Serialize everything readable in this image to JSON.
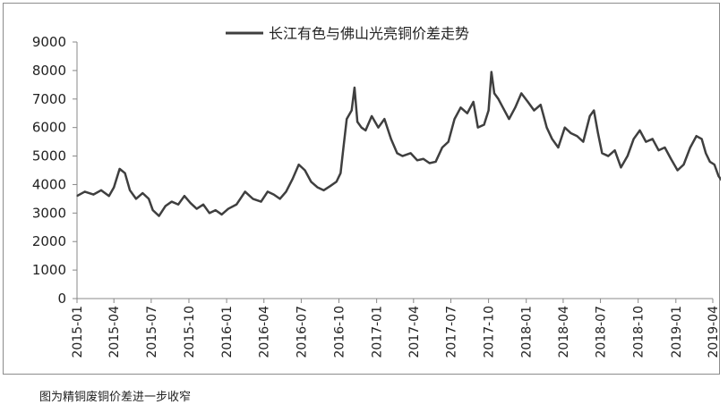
{
  "chart_data": {
    "type": "line",
    "title": "",
    "xlabel": "",
    "ylabel": "",
    "ylim": [
      0,
      9000
    ],
    "yticks": [
      0,
      1000,
      2000,
      3000,
      4000,
      5000,
      6000,
      7000,
      8000,
      9000
    ],
    "xticks": [
      "2015-01",
      "2015-04",
      "2015-07",
      "2015-10",
      "2016-01",
      "2016-04",
      "2016-07",
      "2016-10",
      "2017-01",
      "2017-04",
      "2017-07",
      "2017-10",
      "2018-01",
      "2018-04",
      "2018-07",
      "2018-10",
      "2019-01",
      "2019-04"
    ],
    "grid": false,
    "legend_position": "top-center",
    "line_color": "#3f3f3f",
    "series": [
      {
        "name": "长江有色与佛山光亮铜价差走势",
        "points": [
          [
            "2015-01-01",
            3600
          ],
          [
            "2015-01-20",
            3750
          ],
          [
            "2015-02-10",
            3650
          ],
          [
            "2015-03-01",
            3800
          ],
          [
            "2015-03-20",
            3600
          ],
          [
            "2015-04-01",
            3900
          ],
          [
            "2015-04-15",
            4550
          ],
          [
            "2015-04-28",
            4400
          ],
          [
            "2015-05-10",
            3800
          ],
          [
            "2015-05-25",
            3500
          ],
          [
            "2015-06-10",
            3700
          ],
          [
            "2015-06-25",
            3500
          ],
          [
            "2015-07-05",
            3100
          ],
          [
            "2015-07-20",
            2900
          ],
          [
            "2015-08-05",
            3250
          ],
          [
            "2015-08-20",
            3400
          ],
          [
            "2015-09-05",
            3300
          ],
          [
            "2015-09-20",
            3600
          ],
          [
            "2015-10-05",
            3350
          ],
          [
            "2015-10-20",
            3150
          ],
          [
            "2015-11-05",
            3300
          ],
          [
            "2015-11-20",
            3000
          ],
          [
            "2015-12-05",
            3100
          ],
          [
            "2015-12-20",
            2950
          ],
          [
            "2016-01-05",
            3150
          ],
          [
            "2016-01-25",
            3300
          ],
          [
            "2016-02-15",
            3750
          ],
          [
            "2016-03-05",
            3500
          ],
          [
            "2016-03-25",
            3400
          ],
          [
            "2016-04-10",
            3750
          ],
          [
            "2016-04-25",
            3650
          ],
          [
            "2016-05-10",
            3500
          ],
          [
            "2016-05-25",
            3750
          ],
          [
            "2016-06-10",
            4200
          ],
          [
            "2016-06-25",
            4700
          ],
          [
            "2016-07-10",
            4500
          ],
          [
            "2016-07-25",
            4100
          ],
          [
            "2016-08-10",
            3900
          ],
          [
            "2016-08-25",
            3800
          ],
          [
            "2016-09-10",
            3950
          ],
          [
            "2016-09-25",
            4100
          ],
          [
            "2016-10-05",
            4400
          ],
          [
            "2016-10-12",
            5300
          ],
          [
            "2016-10-20",
            6300
          ],
          [
            "2016-11-01",
            6600
          ],
          [
            "2016-11-08",
            7400
          ],
          [
            "2016-11-15",
            6200
          ],
          [
            "2016-11-25",
            6000
          ],
          [
            "2016-12-05",
            5900
          ],
          [
            "2016-12-20",
            6400
          ],
          [
            "2017-01-05",
            6000
          ],
          [
            "2017-01-20",
            6300
          ],
          [
            "2017-02-05",
            5600
          ],
          [
            "2017-02-20",
            5100
          ],
          [
            "2017-03-05",
            5000
          ],
          [
            "2017-03-25",
            5100
          ],
          [
            "2017-04-10",
            4850
          ],
          [
            "2017-04-25",
            4900
          ],
          [
            "2017-05-10",
            4750
          ],
          [
            "2017-05-25",
            4800
          ],
          [
            "2017-06-10",
            5300
          ],
          [
            "2017-06-25",
            5500
          ],
          [
            "2017-07-10",
            6300
          ],
          [
            "2017-07-25",
            6700
          ],
          [
            "2017-08-10",
            6500
          ],
          [
            "2017-08-25",
            6900
          ],
          [
            "2017-09-05",
            6000
          ],
          [
            "2017-09-20",
            6100
          ],
          [
            "2017-10-01",
            6600
          ],
          [
            "2017-10-08",
            7950
          ],
          [
            "2017-10-15",
            7200
          ],
          [
            "2017-10-25",
            7000
          ],
          [
            "2017-11-05",
            6700
          ],
          [
            "2017-11-20",
            6300
          ],
          [
            "2017-12-05",
            6700
          ],
          [
            "2017-12-20",
            7200
          ],
          [
            "2018-01-05",
            6900
          ],
          [
            "2018-01-20",
            6600
          ],
          [
            "2018-02-05",
            6800
          ],
          [
            "2018-02-20",
            6000
          ],
          [
            "2018-03-05",
            5600
          ],
          [
            "2018-03-20",
            5300
          ],
          [
            "2018-04-05",
            6000
          ],
          [
            "2018-04-20",
            5800
          ],
          [
            "2018-05-05",
            5700
          ],
          [
            "2018-05-20",
            5500
          ],
          [
            "2018-06-05",
            6400
          ],
          [
            "2018-06-15",
            6600
          ],
          [
            "2018-06-25",
            5800
          ],
          [
            "2018-07-05",
            5100
          ],
          [
            "2018-07-20",
            5000
          ],
          [
            "2018-08-05",
            5200
          ],
          [
            "2018-08-20",
            4600
          ],
          [
            "2018-09-05",
            5000
          ],
          [
            "2018-09-20",
            5600
          ],
          [
            "2018-10-05",
            5900
          ],
          [
            "2018-10-20",
            5500
          ],
          [
            "2018-11-05",
            5600
          ],
          [
            "2018-11-20",
            5200
          ],
          [
            "2018-12-05",
            5300
          ],
          [
            "2018-12-20",
            4900
          ],
          [
            "2019-01-05",
            4500
          ],
          [
            "2019-01-20",
            4700
          ],
          [
            "2019-02-05",
            5300
          ],
          [
            "2019-02-20",
            5700
          ],
          [
            "2019-03-05",
            5600
          ],
          [
            "2019-03-15",
            5100
          ],
          [
            "2019-03-25",
            4800
          ],
          [
            "2019-04-05",
            4700
          ],
          [
            "2019-04-15",
            4300
          ],
          [
            "2019-04-25",
            4100
          ],
          [
            "2019-05-05",
            3800
          ]
        ]
      }
    ]
  },
  "caption": "图为精铜废铜价差进一步收窄"
}
